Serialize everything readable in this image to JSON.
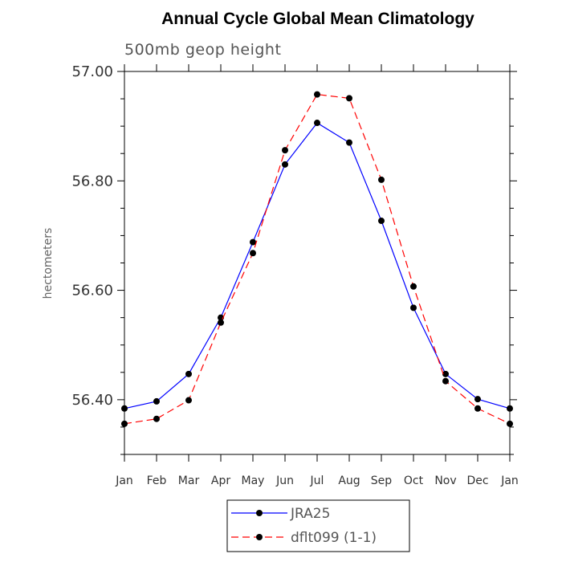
{
  "chart_data": {
    "type": "line",
    "title": "Annual Cycle Global Mean Climatology",
    "subtitle": "500mb geop height",
    "xlabel": "",
    "ylabel": "hectometers",
    "categories": [
      "Jan",
      "Feb",
      "Mar",
      "Apr",
      "May",
      "Jun",
      "Jul",
      "Aug",
      "Sep",
      "Oct",
      "Nov",
      "Dec",
      "Jan"
    ],
    "ylim": [
      56.3,
      57.0
    ],
    "yticks": [
      56.4,
      56.6,
      56.8,
      57.0
    ],
    "ytick_labels": [
      "56.40",
      "56.60",
      "56.80",
      "57.00"
    ],
    "grid": false,
    "legend_position": "bottom-center",
    "series": [
      {
        "name": "JRA25",
        "color": "#0000ff",
        "line_style": "solid",
        "marker": "filled-circle",
        "values": [
          56.384,
          56.397,
          56.447,
          56.55,
          56.688,
          56.83,
          56.906,
          56.87,
          56.727,
          56.568,
          56.447,
          56.401,
          56.384
        ]
      },
      {
        "name": "dflt099 (1-1)",
        "color": "#ff0000",
        "line_style": "dashed",
        "marker": "filled-circle",
        "values": [
          56.356,
          56.365,
          56.399,
          56.541,
          56.668,
          56.856,
          56.958,
          56.951,
          56.802,
          56.607,
          56.434,
          56.384,
          56.356
        ]
      }
    ]
  }
}
